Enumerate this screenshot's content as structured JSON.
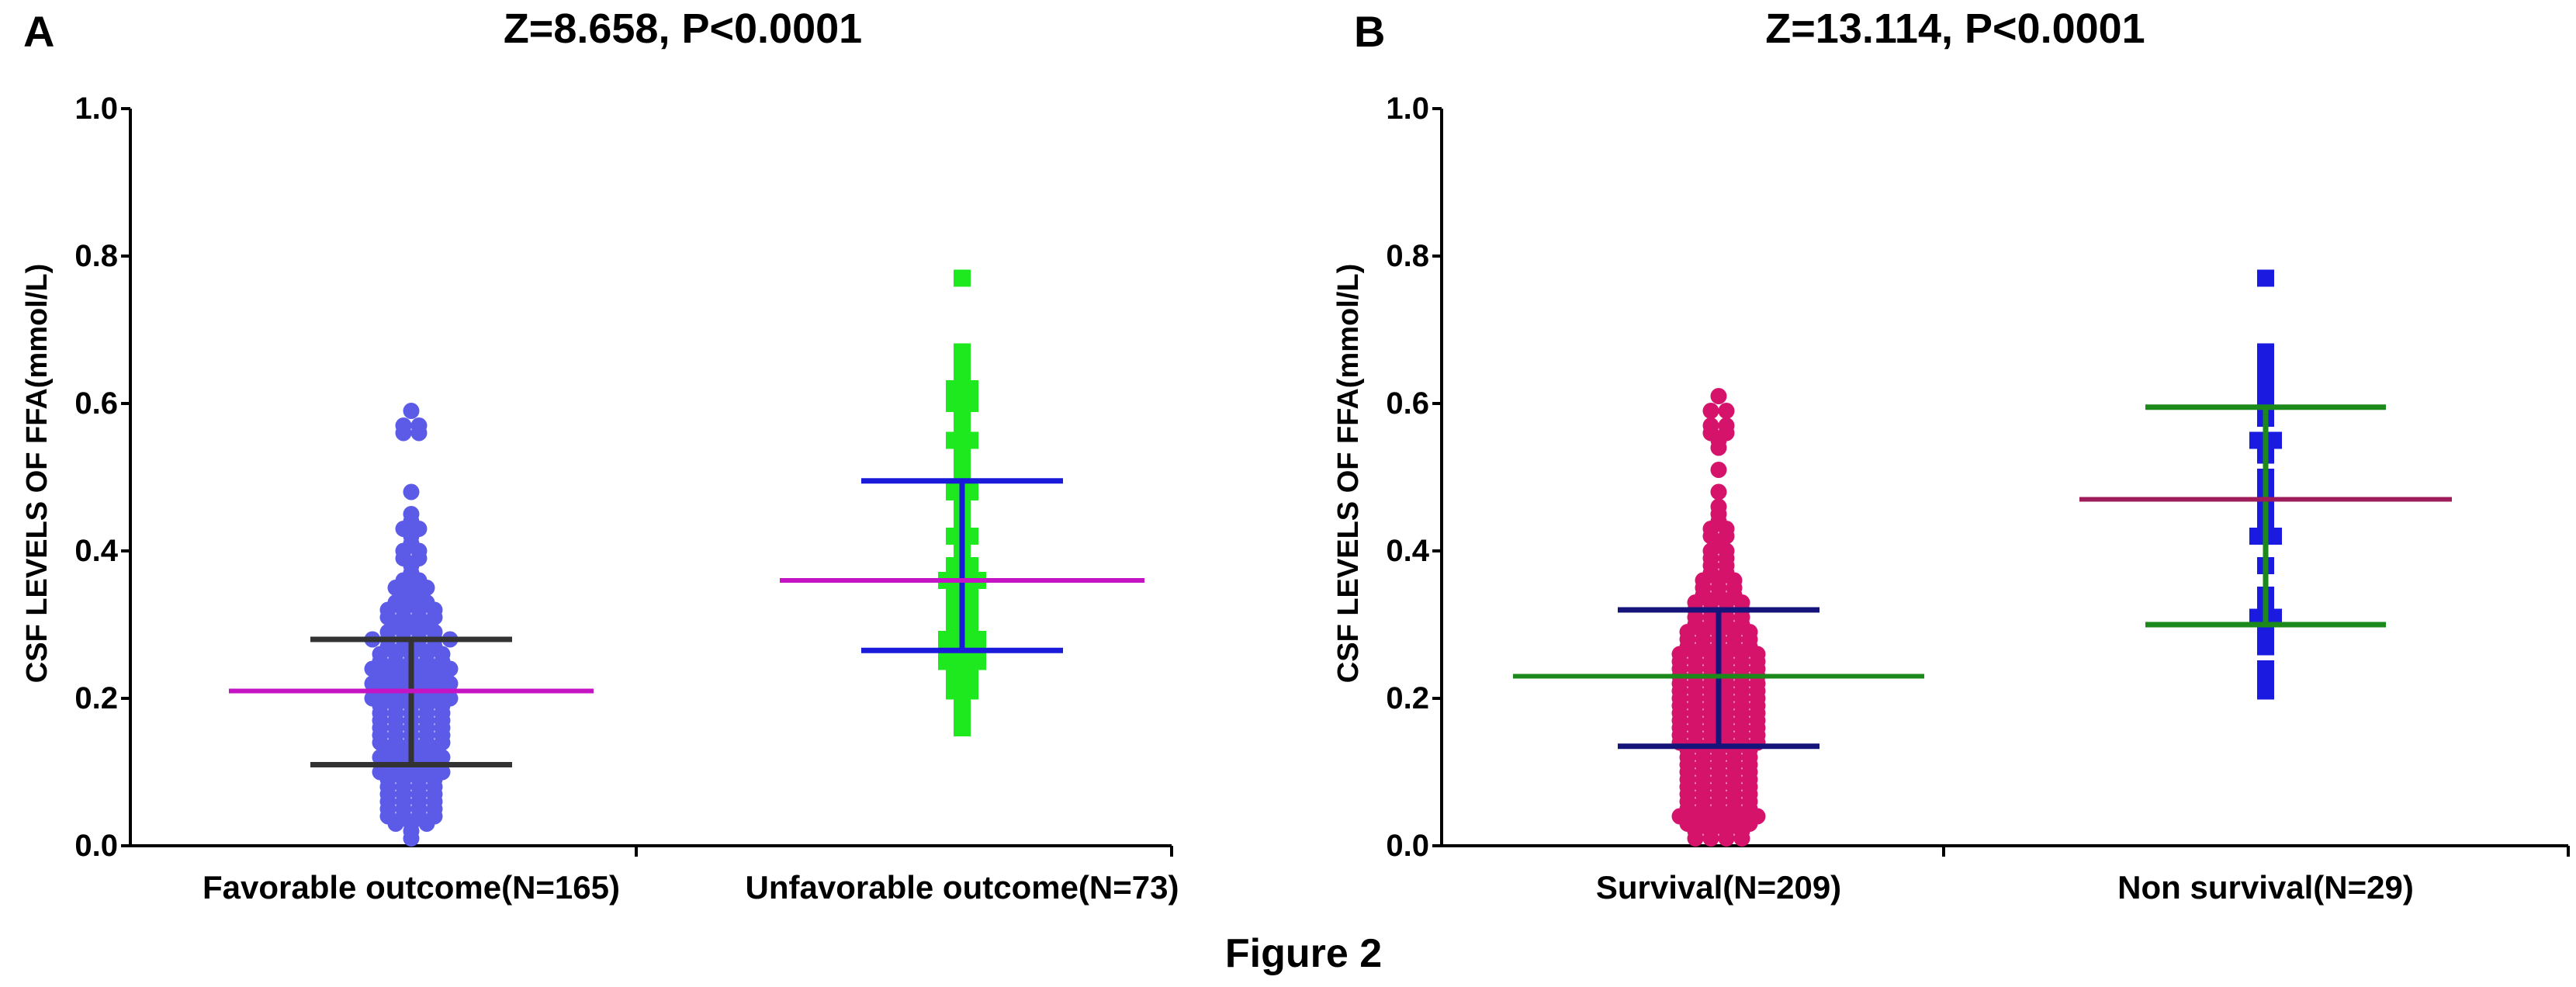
{
  "figure": {
    "caption": "Figure 2"
  },
  "chart_data": [
    {
      "type": "scatter",
      "panel_label": "A",
      "title": "Z=8.658, P<0.0001",
      "xlabel": "",
      "ylabel": "CSF LEVELS OF FFA(mmol/L)",
      "ylim": [
        0,
        1.0
      ],
      "yticks": [
        "0.0",
        "0.2",
        "0.4",
        "0.6",
        "0.8",
        "1.0"
      ],
      "grid": false,
      "categories": [
        "Favorable outcome(N=165)",
        "Unfavorable outcome(N=73)"
      ],
      "series": [
        {
          "name": "Favorable outcome(N=165)",
          "n": 165,
          "marker": "circle",
          "color": "#5b5be8",
          "median": 0.21,
          "q1": 0.11,
          "q3": 0.28,
          "whisker_color": "#333333",
          "median_color": "#c414c4",
          "values": [
            0.59,
            0.57,
            0.56,
            0.56,
            0.57,
            0.48,
            0.45,
            0.44,
            0.43,
            0.43,
            0.42,
            0.41,
            0.4,
            0.4,
            0.39,
            0.39,
            0.38,
            0.37,
            0.36,
            0.36,
            0.35,
            0.35,
            0.35,
            0.34,
            0.34,
            0.33,
            0.33,
            0.33,
            0.32,
            0.32,
            0.32,
            0.32,
            0.31,
            0.31,
            0.31,
            0.31,
            0.3,
            0.3,
            0.3,
            0.29,
            0.29,
            0.29,
            0.29,
            0.28,
            0.28,
            0.28,
            0.28,
            0.28,
            0.28,
            0.27,
            0.27,
            0.27,
            0.27,
            0.26,
            0.26,
            0.26,
            0.26,
            0.26,
            0.25,
            0.25,
            0.25,
            0.25,
            0.25,
            0.24,
            0.24,
            0.24,
            0.24,
            0.24,
            0.24,
            0.23,
            0.23,
            0.23,
            0.23,
            0.23,
            0.22,
            0.22,
            0.22,
            0.22,
            0.22,
            0.22,
            0.21,
            0.21,
            0.21,
            0.21,
            0.21,
            0.2,
            0.2,
            0.2,
            0.2,
            0.2,
            0.2,
            0.19,
            0.19,
            0.19,
            0.19,
            0.19,
            0.18,
            0.18,
            0.18,
            0.18,
            0.18,
            0.17,
            0.17,
            0.17,
            0.17,
            0.17,
            0.16,
            0.16,
            0.16,
            0.16,
            0.16,
            0.15,
            0.15,
            0.15,
            0.15,
            0.15,
            0.14,
            0.14,
            0.14,
            0.14,
            0.14,
            0.13,
            0.13,
            0.13,
            0.13,
            0.12,
            0.12,
            0.12,
            0.12,
            0.12,
            0.11,
            0.11,
            0.11,
            0.11,
            0.1,
            0.1,
            0.1,
            0.1,
            0.1,
            0.09,
            0.09,
            0.09,
            0.09,
            0.08,
            0.08,
            0.08,
            0.08,
            0.07,
            0.07,
            0.07,
            0.07,
            0.06,
            0.06,
            0.06,
            0.06,
            0.05,
            0.05,
            0.05,
            0.05,
            0.04,
            0.04,
            0.04,
            0.04,
            0.03,
            0.03,
            0.03,
            0.02,
            0.01
          ]
        },
        {
          "name": "Unfavorable outcome(N=73)",
          "n": 73,
          "marker": "square",
          "color": "#1ee81e",
          "median": 0.36,
          "q1": 0.265,
          "q3": 0.495,
          "whisker_color": "#1a1adb",
          "median_color": "#c414c4",
          "values": [
            0.77,
            0.67,
            0.66,
            0.65,
            0.64,
            0.62,
            0.62,
            0.61,
            0.6,
            0.6,
            0.58,
            0.56,
            0.55,
            0.55,
            0.54,
            0.52,
            0.51,
            0.5,
            0.49,
            0.48,
            0.48,
            0.47,
            0.46,
            0.45,
            0.44,
            0.43,
            0.42,
            0.42,
            0.41,
            0.4,
            0.39,
            0.38,
            0.38,
            0.37,
            0.36,
            0.36,
            0.36,
            0.35,
            0.35,
            0.34,
            0.34,
            0.33,
            0.33,
            0.32,
            0.32,
            0.31,
            0.31,
            0.3,
            0.3,
            0.29,
            0.29,
            0.28,
            0.28,
            0.28,
            0.27,
            0.27,
            0.26,
            0.26,
            0.25,
            0.25,
            0.25,
            0.24,
            0.24,
            0.23,
            0.23,
            0.22,
            0.22,
            0.21,
            0.21,
            0.2,
            0.19,
            0.18,
            0.16
          ]
        }
      ]
    },
    {
      "type": "scatter",
      "panel_label": "B",
      "title": "Z=13.114, P<0.0001",
      "xlabel": "",
      "ylabel": "CSF LEVELS OF FFA(mmol/L)",
      "ylim": [
        0,
        1.0
      ],
      "yticks": [
        "0.0",
        "0.2",
        "0.4",
        "0.6",
        "0.8",
        "1.0"
      ],
      "grid": false,
      "categories": [
        "Survival(N=209)",
        "Non survival(N=29)"
      ],
      "series": [
        {
          "name": "Survival(N=209)",
          "n": 209,
          "marker": "circle",
          "color": "#d6136b",
          "median": 0.23,
          "q1": 0.135,
          "q3": 0.32,
          "whisker_color": "#14147a",
          "median_color": "#1b8a1b",
          "values": [
            0.61,
            0.59,
            0.59,
            0.57,
            0.57,
            0.56,
            0.56,
            0.55,
            0.54,
            0.51,
            0.48,
            0.46,
            0.45,
            0.44,
            0.43,
            0.43,
            0.42,
            0.42,
            0.41,
            0.4,
            0.4,
            0.39,
            0.39,
            0.38,
            0.38,
            0.37,
            0.37,
            0.36,
            0.36,
            0.36,
            0.35,
            0.35,
            0.35,
            0.34,
            0.34,
            0.34,
            0.33,
            0.33,
            0.33,
            0.33,
            0.32,
            0.32,
            0.32,
            0.32,
            0.31,
            0.31,
            0.31,
            0.31,
            0.3,
            0.3,
            0.3,
            0.3,
            0.29,
            0.29,
            0.29,
            0.29,
            0.29,
            0.28,
            0.28,
            0.28,
            0.28,
            0.28,
            0.27,
            0.27,
            0.27,
            0.27,
            0.27,
            0.26,
            0.26,
            0.26,
            0.26,
            0.26,
            0.26,
            0.25,
            0.25,
            0.25,
            0.25,
            0.25,
            0.25,
            0.24,
            0.24,
            0.24,
            0.24,
            0.24,
            0.24,
            0.23,
            0.23,
            0.23,
            0.23,
            0.23,
            0.23,
            0.22,
            0.22,
            0.22,
            0.22,
            0.22,
            0.22,
            0.21,
            0.21,
            0.21,
            0.21,
            0.21,
            0.21,
            0.2,
            0.2,
            0.2,
            0.2,
            0.2,
            0.2,
            0.19,
            0.19,
            0.19,
            0.19,
            0.19,
            0.19,
            0.18,
            0.18,
            0.18,
            0.18,
            0.18,
            0.18,
            0.17,
            0.17,
            0.17,
            0.17,
            0.17,
            0.17,
            0.16,
            0.16,
            0.16,
            0.16,
            0.16,
            0.16,
            0.15,
            0.15,
            0.15,
            0.15,
            0.15,
            0.15,
            0.14,
            0.14,
            0.14,
            0.14,
            0.14,
            0.14,
            0.13,
            0.13,
            0.13,
            0.13,
            0.13,
            0.12,
            0.12,
            0.12,
            0.12,
            0.12,
            0.11,
            0.11,
            0.11,
            0.11,
            0.11,
            0.1,
            0.1,
            0.1,
            0.1,
            0.1,
            0.09,
            0.09,
            0.09,
            0.09,
            0.09,
            0.08,
            0.08,
            0.08,
            0.08,
            0.08,
            0.07,
            0.07,
            0.07,
            0.07,
            0.07,
            0.06,
            0.06,
            0.06,
            0.06,
            0.06,
            0.05,
            0.05,
            0.05,
            0.05,
            0.05,
            0.04,
            0.04,
            0.04,
            0.04,
            0.04,
            0.04,
            0.03,
            0.03,
            0.03,
            0.03,
            0.03,
            0.02,
            0.02,
            0.02,
            0.02,
            0.01,
            0.01,
            0.01,
            0.01
          ]
        },
        {
          "name": "Non survival(N=29)",
          "n": 29,
          "marker": "square",
          "color": "#1a1ae0",
          "median": 0.47,
          "q1": 0.3,
          "q3": 0.595,
          "whisker_color": "#1b8a1b",
          "median_color": "#9e1c5a",
          "values": [
            0.77,
            0.67,
            0.66,
            0.65,
            0.63,
            0.61,
            0.6,
            0.58,
            0.55,
            0.55,
            0.53,
            0.5,
            0.48,
            0.47,
            0.46,
            0.44,
            0.42,
            0.42,
            0.38,
            0.34,
            0.33,
            0.31,
            0.31,
            0.3,
            0.29,
            0.27,
            0.24,
            0.23,
            0.21
          ]
        }
      ]
    }
  ]
}
